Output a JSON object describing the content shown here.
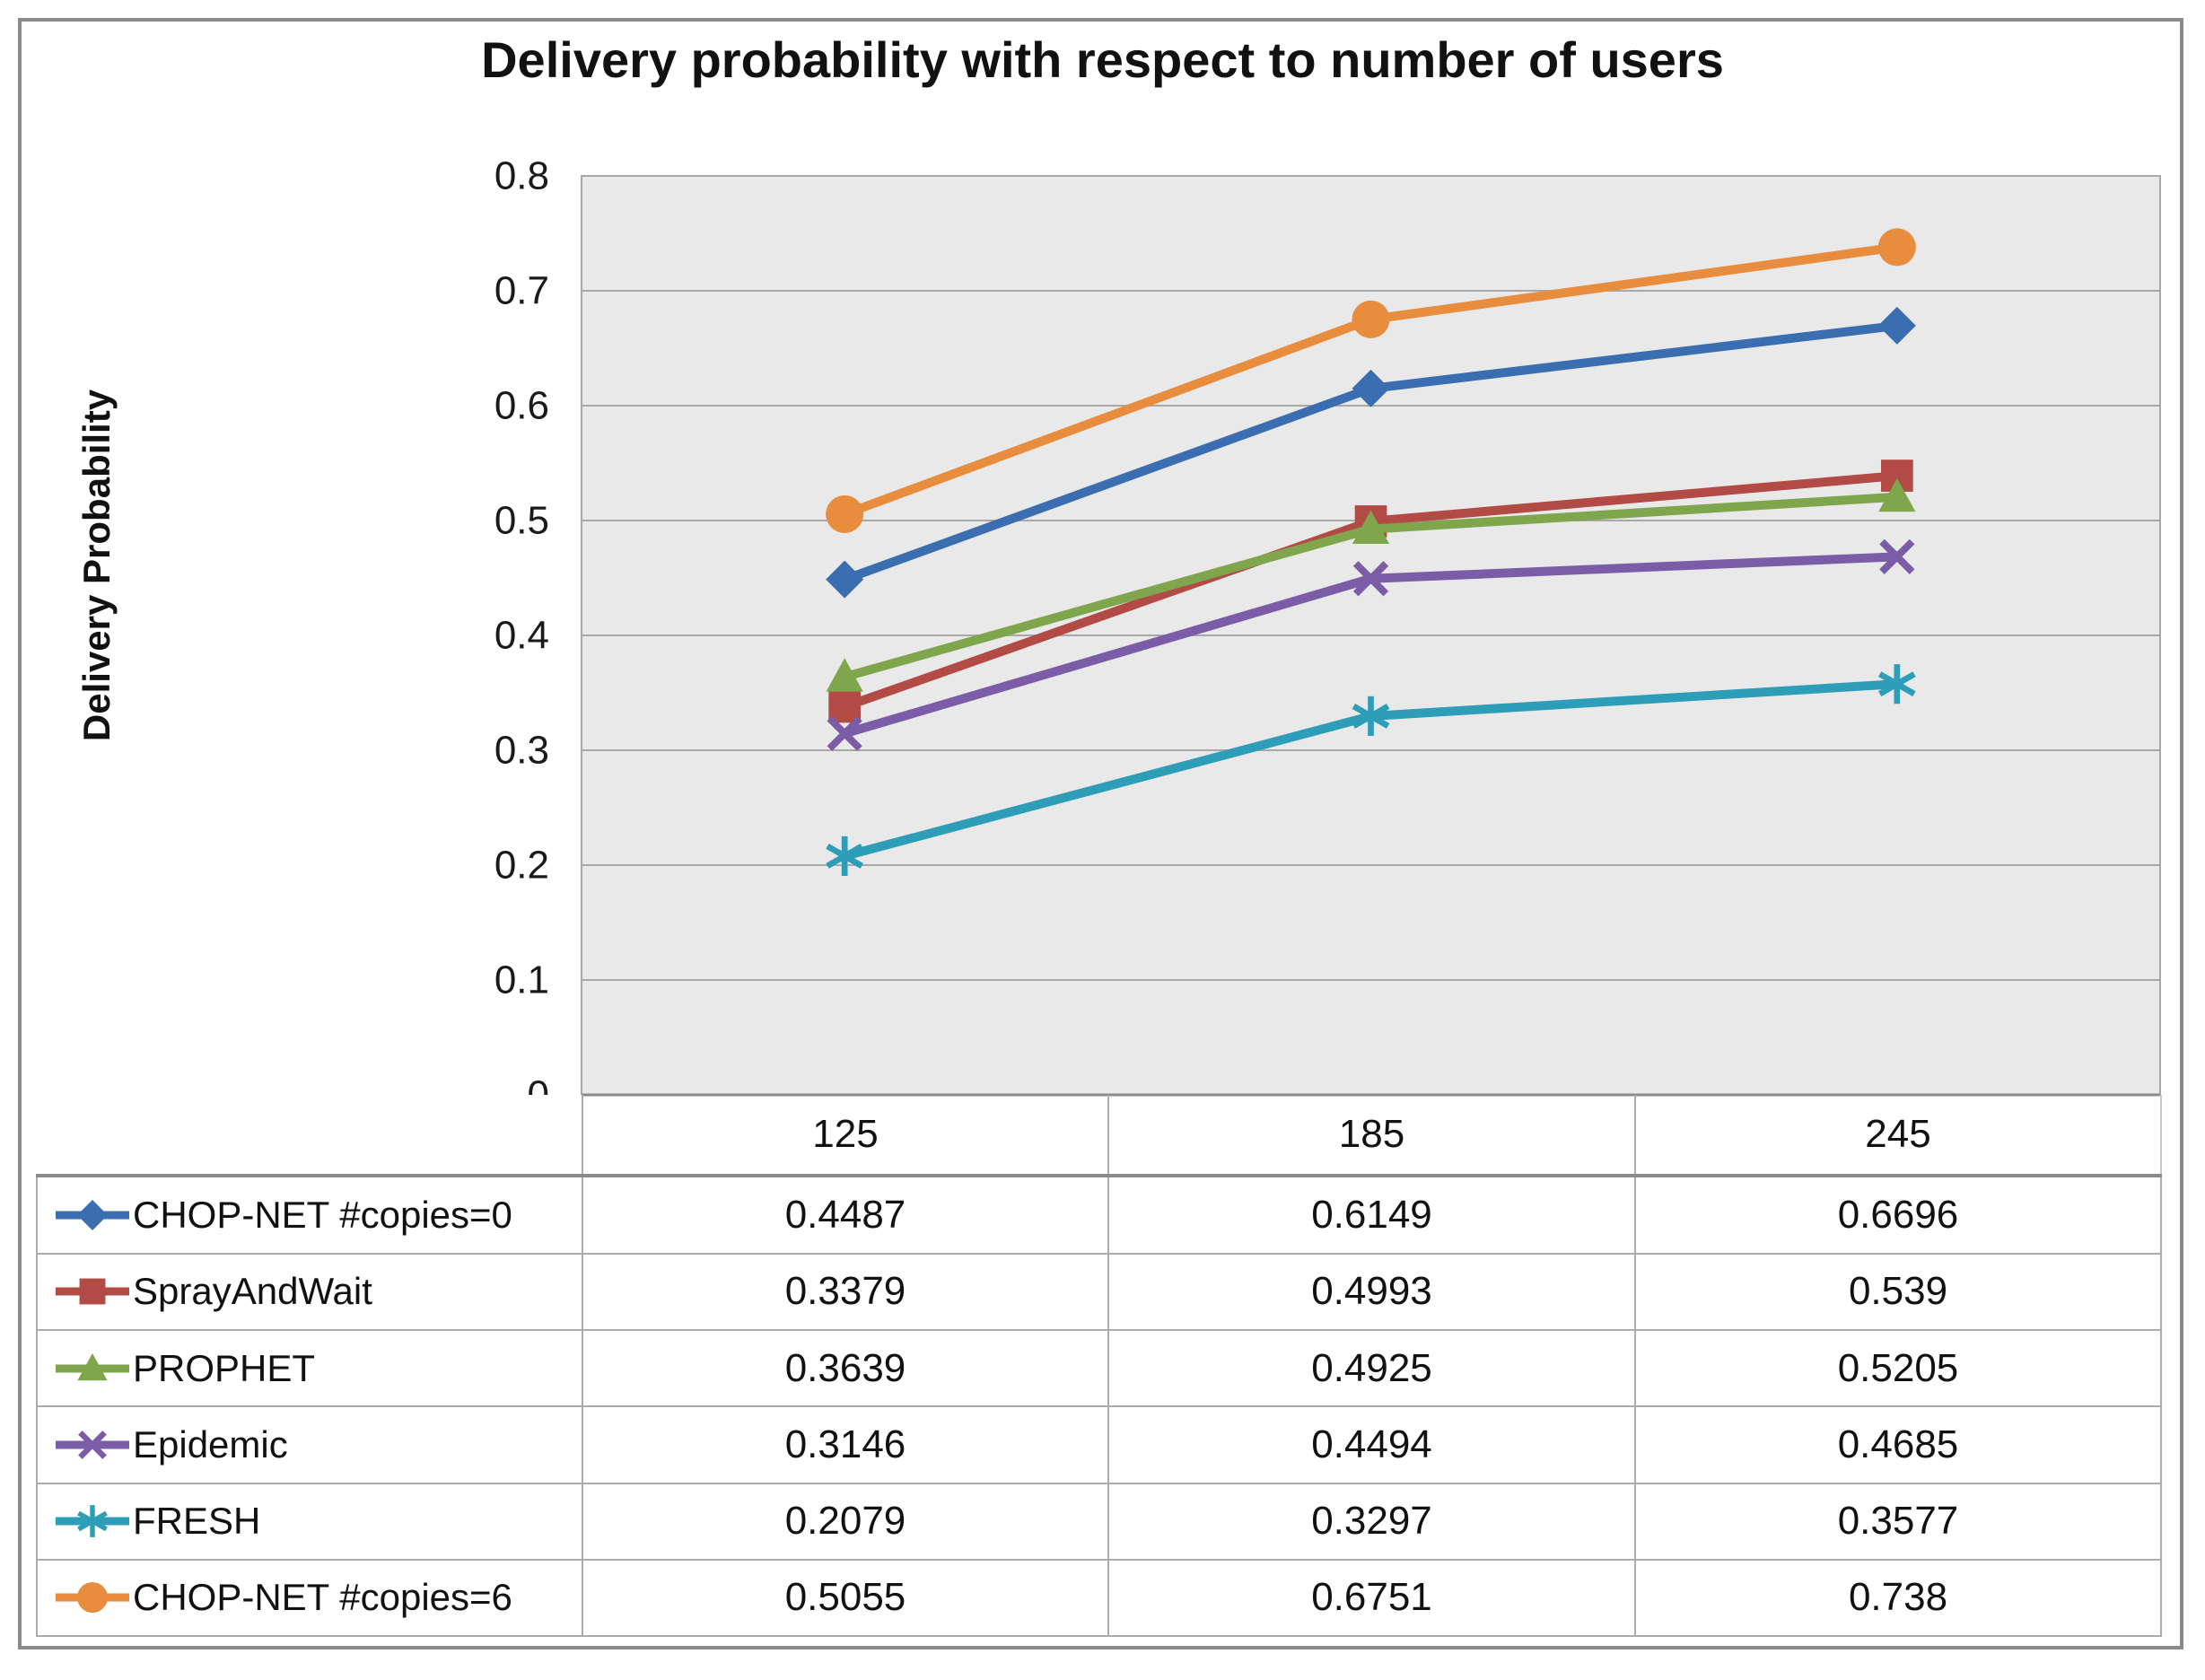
{
  "chart_data": {
    "type": "line",
    "title": "Delivery probability with respect to number of users",
    "ylabel": "Delivery Probability",
    "xlabel": "",
    "categories": [
      125,
      185,
      245
    ],
    "series": [
      {
        "name": "CHOP-NET #copies=0",
        "color": "#3a6eb1",
        "marker": "diamond",
        "values": [
          0.4487,
          0.6149,
          0.6696
        ]
      },
      {
        "name": "SprayAndWait",
        "color": "#b24a45",
        "marker": "square",
        "values": [
          0.3379,
          0.4993,
          0.539
        ]
      },
      {
        "name": "PROPHET",
        "color": "#7fa64c",
        "marker": "triangle",
        "values": [
          0.3639,
          0.4925,
          0.5205
        ]
      },
      {
        "name": "Epidemic",
        "color": "#7a5ca7",
        "marker": "x",
        "values": [
          0.3146,
          0.4494,
          0.4685
        ]
      },
      {
        "name": "FRESH",
        "color": "#2e9db8",
        "marker": "asterisk",
        "values": [
          0.2079,
          0.3297,
          0.3577
        ]
      },
      {
        "name": "CHOP-NET #copies=6",
        "color": "#e88c3d",
        "marker": "circle",
        "values": [
          0.5055,
          0.6751,
          0.738
        ]
      }
    ],
    "ylim": [
      0,
      0.8
    ],
    "y_ticks": [
      0,
      0.1,
      0.2,
      0.3,
      0.4,
      0.5,
      0.6,
      0.7,
      0.8
    ],
    "grid": true,
    "legend_position": "table-left",
    "colors": {
      "plot_bg": "#e9e9e9",
      "grid_line": "#a8a8a8",
      "axis_line": "#8a8a8a",
      "frame_border": "#8a8a8a",
      "table_line": "#ababab",
      "text": "#1a1a1a"
    }
  }
}
